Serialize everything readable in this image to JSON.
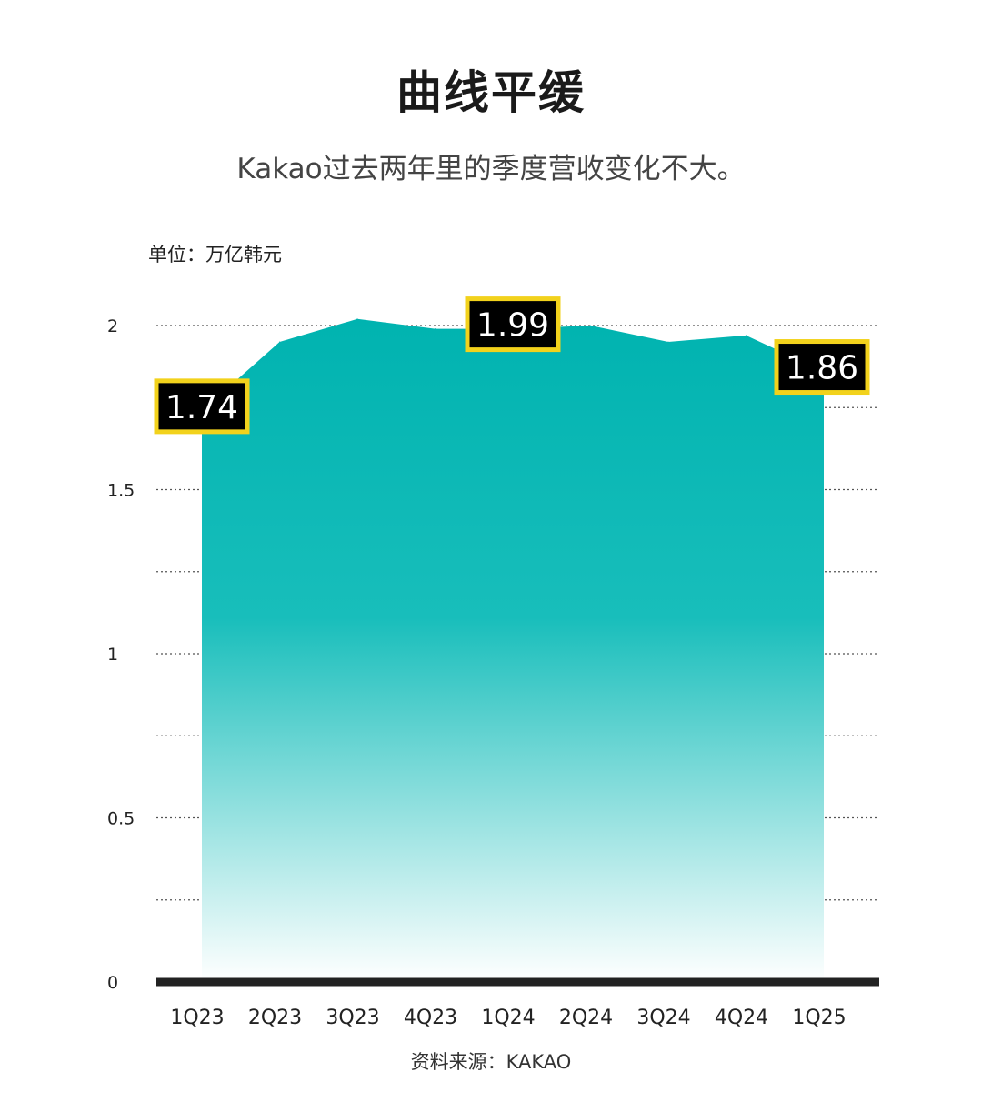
{
  "title": "曲线平缓",
  "subtitle": "Kakao过去两年里的季度营收变化不大。",
  "unit_label": "单位：万亿韩元",
  "source": "资料来源：KAKAO",
  "colors": {
    "fill_top": "#00b3b0",
    "fill_bottom": "#ffffff",
    "label_bg": "#000000",
    "label_border": "#f2d21c",
    "axis": "#222222",
    "grid": "#555555"
  },
  "chart_data": {
    "type": "area",
    "categories": [
      "1Q23",
      "2Q23",
      "3Q23",
      "4Q23",
      "1Q24",
      "2Q24",
      "3Q24",
      "4Q24",
      "1Q25"
    ],
    "values": [
      1.74,
      1.95,
      2.02,
      1.99,
      1.99,
      2.0,
      1.95,
      1.97,
      1.86
    ],
    "ylim": [
      0,
      2
    ],
    "yticks": [
      0,
      0.5,
      1,
      1.5,
      2
    ],
    "ytick_labels": [
      "0",
      "0.5",
      "1",
      "1.5",
      "2"
    ],
    "gridlines": [
      0.25,
      0.5,
      0.75,
      1,
      1.25,
      1.5,
      1.75,
      2
    ],
    "data_labels": [
      {
        "index": 0,
        "text": "1.74"
      },
      {
        "index": 4,
        "text": "1.99"
      },
      {
        "index": 8,
        "text": "1.86"
      }
    ],
    "xlabel": "",
    "ylabel": ""
  }
}
